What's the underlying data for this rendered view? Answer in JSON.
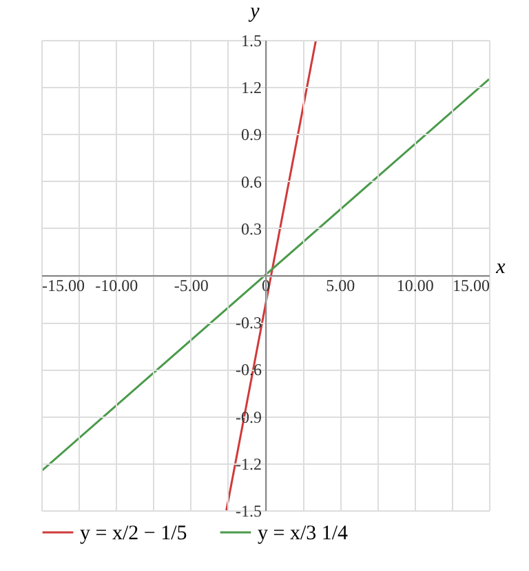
{
  "chart_data": {
    "type": "line",
    "xlabel": "x",
    "ylabel": "y",
    "series": [
      {
        "name": "y = x/2 − 1/5",
        "color": "#d03a3a",
        "x": [
          -2.6,
          3.4
        ],
        "values": [
          -1.5,
          1.5
        ]
      },
      {
        "name": "y = x/3 1/4",
        "color": "#4a9a4a",
        "x": [
          -15,
          15
        ],
        "values": [
          -1.25,
          1.25
        ]
      }
    ],
    "xlim": [
      -15,
      15
    ],
    "ylim": [
      -1.5,
      1.5
    ],
    "xticks": [
      {
        "value": -15,
        "label": "-15.00"
      },
      {
        "value": -12.5,
        "label": null
      },
      {
        "value": -10,
        "label": "-10.00"
      },
      {
        "value": -7.5,
        "label": null
      },
      {
        "value": -5,
        "label": "-5.00"
      },
      {
        "value": -2.5,
        "label": null
      },
      0,
      {
        "value": 2.5,
        "label": null
      },
      {
        "value": 5,
        "label": "5.00"
      },
      {
        "value": 7.5,
        "label": null
      },
      {
        "value": 10,
        "label": "10.00"
      },
      {
        "value": 12.5,
        "label": null
      },
      {
        "value": 15,
        "label": "15.00"
      }
    ],
    "yticks": [
      -1.5,
      -1.2,
      -0.9,
      -0.6,
      -0.3,
      {
        "value": 0,
        "label": null
      },
      0.3,
      0.6,
      0.9,
      1.2,
      1.5
    ],
    "grid": true,
    "legend": "bottom left",
    "line_style": "solid",
    "marker": "none"
  }
}
